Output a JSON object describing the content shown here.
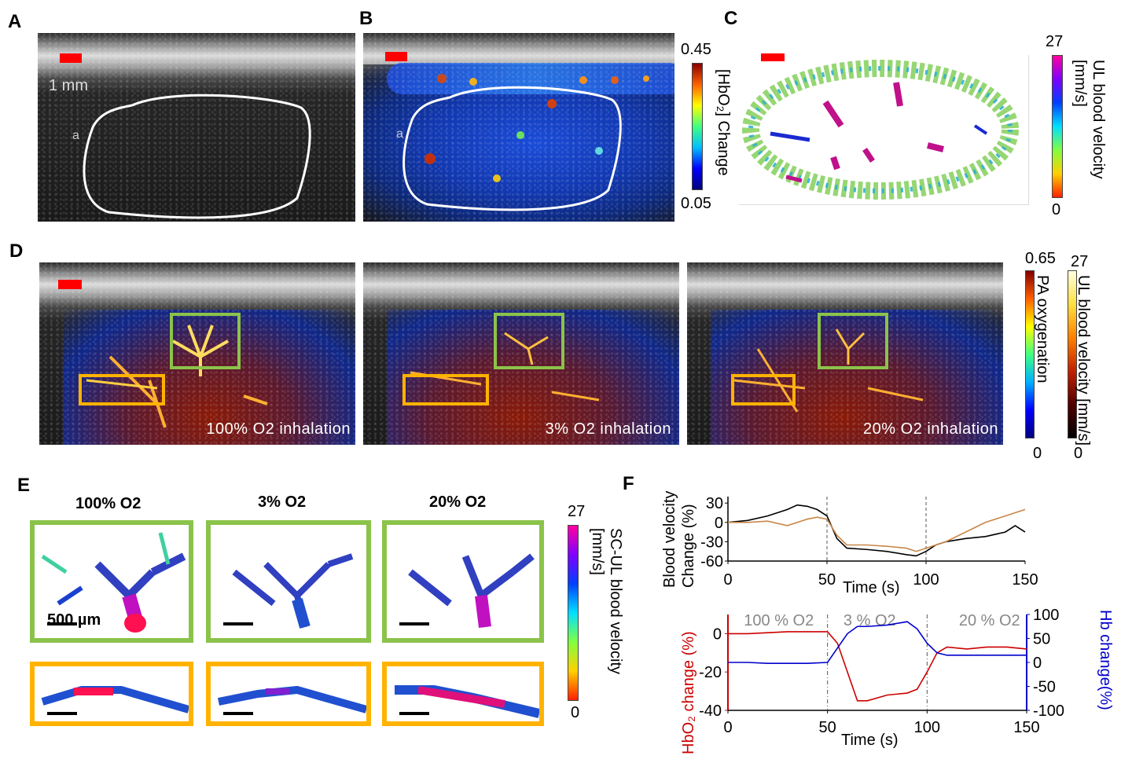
{
  "panels": {
    "A": {
      "letter": "A",
      "scale_label": "1 mm",
      "marker": "a"
    },
    "B": {
      "letter": "B",
      "marker": "a",
      "colorbar": {
        "max": "0.45",
        "min": "0.05",
        "label": "[HbO₂] Change"
      }
    },
    "C": {
      "letter": "C",
      "colorbar": {
        "max": "27",
        "min": "0",
        "label": "UL blood velocity [mm/s]"
      }
    },
    "D": {
      "letter": "D",
      "images": [
        {
          "caption": "100% O2 inhalation"
        },
        {
          "caption": "3% O2 inhalation"
        },
        {
          "caption": "20% O2 inhalation"
        }
      ],
      "colorbar_pa": {
        "max": "0.65",
        "min": "0",
        "label": "PA oxygenation"
      },
      "colorbar_ul": {
        "max": "27",
        "min": "0",
        "label": "UL blood velocity [mm/s]"
      }
    },
    "E": {
      "letter": "E",
      "columns": [
        "100% O2",
        "3% O2",
        "20% O2"
      ],
      "scale_label": "500 µm",
      "colorbar": {
        "max": "27",
        "min": "0",
        "label": "SC-UL blood velocity [mm/s]"
      }
    },
    "F": {
      "letter": "F"
    }
  },
  "chart_data": [
    {
      "type": "line",
      "ylabel": "Blood velocity Change (%)",
      "xlabel": "Time (s)",
      "xlim": [
        0,
        150
      ],
      "ylim": [
        -60,
        40
      ],
      "xticks": [
        0,
        50,
        100,
        150
      ],
      "yticks": [
        30,
        0,
        -30,
        -60
      ],
      "vlines": [
        50,
        100
      ],
      "series": [
        {
          "color": "#000000",
          "x": [
            0,
            10,
            20,
            30,
            35,
            40,
            45,
            50,
            55,
            60,
            70,
            80,
            90,
            95,
            100,
            105,
            110,
            120,
            130,
            140,
            145,
            150
          ],
          "y": [
            0,
            3,
            10,
            20,
            27,
            25,
            20,
            10,
            -25,
            -40,
            -42,
            -45,
            -50,
            -52,
            -45,
            -35,
            -30,
            -25,
            -22,
            -15,
            -5,
            -15
          ]
        },
        {
          "color": "#c8874a",
          "x": [
            0,
            10,
            20,
            30,
            40,
            45,
            50,
            55,
            60,
            70,
            80,
            90,
            95,
            100,
            110,
            120,
            130,
            140,
            145,
            150
          ],
          "y": [
            0,
            0,
            2,
            -5,
            5,
            8,
            5,
            -20,
            -35,
            -35,
            -37,
            -40,
            -45,
            -40,
            -30,
            -15,
            0,
            10,
            15,
            20
          ]
        }
      ]
    },
    {
      "type": "line",
      "xlabel": "Time (s)",
      "ylabel": "HbO₂ change (%)",
      "ylabel_right": "Hb change(%)",
      "xlim": [
        0,
        150
      ],
      "ylim": [
        -40,
        10
      ],
      "ylim_right": [
        -100,
        100
      ],
      "xticks": [
        0,
        50,
        100,
        150
      ],
      "yticks": [
        0,
        -20,
        -40
      ],
      "yticks_right": [
        100,
        50,
        0,
        -50,
        -100
      ],
      "vlines": [
        50,
        100
      ],
      "annotations": [
        "100 % O2",
        "3 % O2",
        "20 % O2"
      ],
      "series": [
        {
          "axis": "left",
          "color": "#cc0000",
          "x": [
            0,
            10,
            20,
            30,
            40,
            50,
            55,
            60,
            65,
            70,
            80,
            90,
            95,
            100,
            105,
            110,
            120,
            130,
            140,
            150
          ],
          "y": [
            0,
            0,
            0.5,
            1,
            1,
            1,
            -5,
            -20,
            -35,
            -35,
            -32,
            -31,
            -29,
            -20,
            -10,
            -7,
            -8,
            -7,
            -7,
            -8
          ]
        },
        {
          "axis": "right",
          "color": "#0000cc",
          "x": [
            0,
            10,
            20,
            30,
            40,
            50,
            55,
            60,
            65,
            70,
            80,
            90,
            95,
            100,
            105,
            110,
            120,
            130,
            140,
            150
          ],
          "y": [
            0,
            0,
            -2,
            -2,
            -2,
            0,
            30,
            60,
            75,
            75,
            78,
            85,
            70,
            40,
            20,
            15,
            15,
            15,
            15,
            15
          ]
        }
      ]
    }
  ]
}
